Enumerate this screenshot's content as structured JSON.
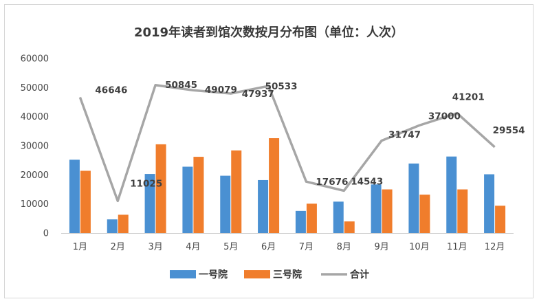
{
  "chart_data": {
    "type": "bar",
    "title": "2019年读者到馆次数按月分布图（单位：人次）",
    "xlabel": "",
    "ylabel": "",
    "categories": [
      "1月",
      "2月",
      "3月",
      "4月",
      "5月",
      "6月",
      "7月",
      "8月",
      "9月",
      "10月",
      "11月",
      "12月"
    ],
    "y_ticks": [
      "0",
      "10000",
      "20000",
      "30000",
      "40000",
      "50000",
      "60000"
    ],
    "ylim": [
      0,
      60000
    ],
    "grid": false,
    "legend_position": "bottom",
    "series": [
      {
        "name": "一号院",
        "kind": "bar",
        "color": "#4a90d2",
        "values": [
          25200,
          4700,
          20300,
          22800,
          19700,
          18200,
          7600,
          10800,
          16700,
          23900,
          26300,
          20200
        ]
      },
      {
        "name": "三号院",
        "kind": "bar",
        "color": "#f07d2c",
        "values": [
          21400,
          6300,
          30500,
          26200,
          28400,
          32600,
          10100,
          4000,
          15000,
          13200,
          15000,
          9400
        ]
      },
      {
        "name": "合计",
        "kind": "line",
        "color": "#a6a6a6",
        "values": [
          46646,
          11025,
          50845,
          49079,
          47937,
          50533,
          17676,
          14543,
          31747,
          37000,
          41201,
          29554
        ],
        "labels": [
          "46646",
          "11025",
          "50845",
          "49079",
          "47937",
          "50533",
          "17676",
          "14543",
          "31747",
          "37000",
          "41201",
          "29554"
        ]
      }
    ]
  }
}
